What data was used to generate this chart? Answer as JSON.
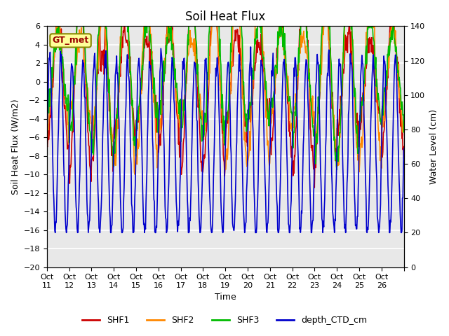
{
  "title": "Soil Heat Flux",
  "xlabel": "Time",
  "ylabel_left": "Soil Heat Flux (W/m2)",
  "ylabel_right": "Water Level (cm)",
  "ylim_left": [
    -20,
    6
  ],
  "ylim_right": [
    0,
    140
  ],
  "annotation": "GT_met",
  "legend_labels": [
    "SHF1",
    "SHF2",
    "SHF3",
    "depth_CTD_cm"
  ],
  "legend_colors": [
    "#cc0000",
    "#ff8800",
    "#00bb00",
    "#0000cc"
  ],
  "background_color": "#e8e8e8",
  "title_fontsize": 12,
  "label_fontsize": 9,
  "tick_fontsize": 8,
  "line_width": 1.2
}
